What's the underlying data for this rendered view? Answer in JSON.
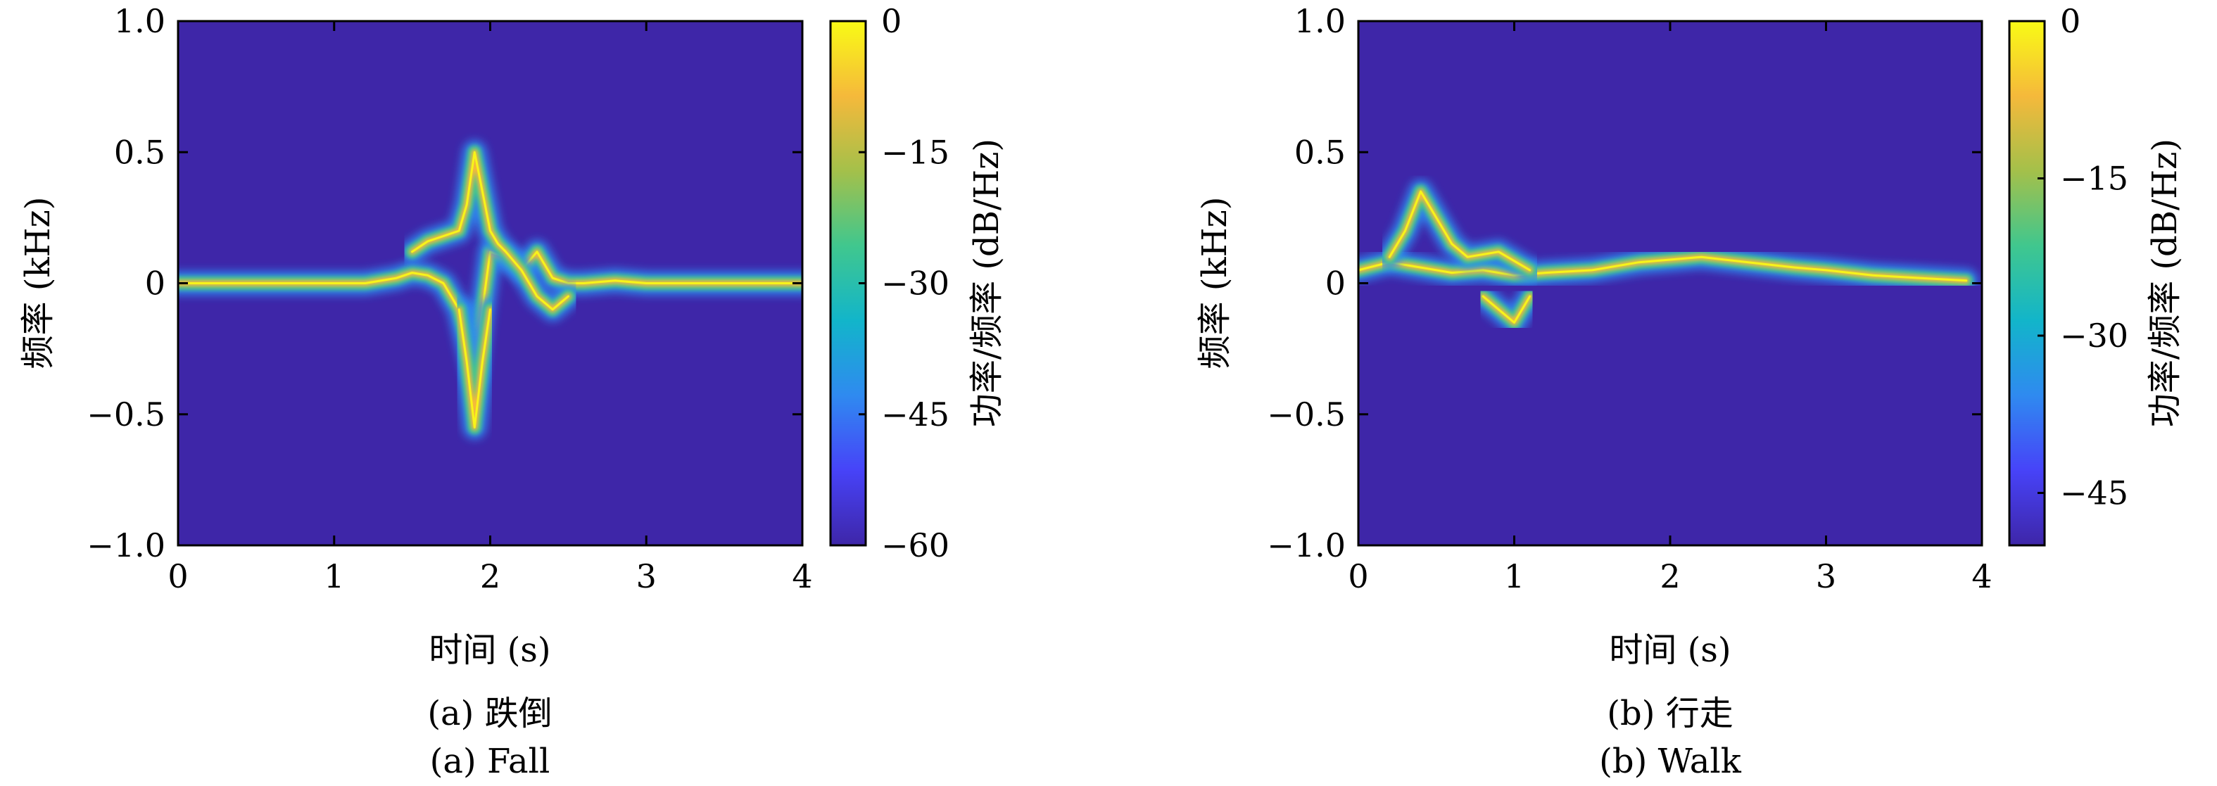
{
  "chart_data": [
    {
      "type": "heatmap",
      "panel_label": "(a) 跌倒",
      "panel_label_en": "(a) Fall",
      "xlabel": "时间 (s)",
      "ylabel": "频率 (kHz)",
      "colorbar_label": "功率/频率 (dB/Hz)",
      "xlim": [
        0,
        4
      ],
      "ylim": [
        -1.0,
        1.0
      ],
      "x_ticks": [
        0,
        1,
        2,
        3,
        4
      ],
      "x_tick_labels": [
        "0",
        "1",
        "2",
        "3",
        "4"
      ],
      "y_ticks": [
        1.0,
        0.5,
        0,
        -0.5,
        -1.0
      ],
      "y_tick_labels": [
        "1.0",
        "0.5",
        "0",
        "−0.5",
        "−1.0"
      ],
      "colorbar_range": [
        -60,
        0
      ],
      "colorbar_ticks": [
        0,
        -15,
        -30,
        -45,
        -60
      ],
      "colorbar_tick_labels": [
        "0",
        "−15",
        "−30",
        "−45",
        "−60"
      ],
      "colormap": [
        "#3e26a8",
        "#4743f8",
        "#2f8af0",
        "#12b5ca",
        "#40c78e",
        "#a4c04a",
        "#f5b93b",
        "#f9fb15"
      ],
      "background_color": "#3e26a8",
      "micro_doppler_traces": [
        {
          "t": [
            0.0,
            1.0,
            1.2,
            1.4,
            1.5,
            1.6,
            1.7,
            1.8,
            1.9,
            1.95,
            2.0,
            2.1,
            2.2,
            2.3,
            2.4,
            2.5,
            2.6,
            2.8,
            3.0,
            3.5,
            4.0
          ],
          "f": [
            0.0,
            0.0,
            0.0,
            0.02,
            0.04,
            0.03,
            0.0,
            -0.1,
            -0.35,
            -0.1,
            0.12,
            0.1,
            0.05,
            0.12,
            0.02,
            0.0,
            0.0,
            0.01,
            0.0,
            0.0,
            0.0
          ]
        },
        {
          "t": [
            1.5,
            1.6,
            1.7,
            1.8,
            1.85,
            1.9,
            1.95,
            2.0,
            2.05,
            2.1,
            2.2,
            2.3,
            2.4,
            2.5
          ],
          "f": [
            0.12,
            0.16,
            0.18,
            0.2,
            0.3,
            0.5,
            0.35,
            0.2,
            0.15,
            0.12,
            0.05,
            -0.05,
            -0.1,
            -0.05
          ]
        },
        {
          "t": [
            1.8,
            1.85,
            1.9,
            1.95,
            2.0
          ],
          "f": [
            -0.1,
            -0.3,
            -0.55,
            -0.3,
            -0.1
          ]
        }
      ]
    },
    {
      "type": "heatmap",
      "panel_label": "(b) 行走",
      "panel_label_en": "(b) Walk",
      "xlabel": "时间 (s)",
      "ylabel": "频率 (kHz)",
      "colorbar_label": "功率/频率 (dB/Hz)",
      "xlim": [
        0,
        4
      ],
      "ylim": [
        -1.0,
        1.0
      ],
      "x_ticks": [
        0,
        1,
        2,
        3,
        4
      ],
      "x_tick_labels": [
        "0",
        "1",
        "2",
        "3",
        "4"
      ],
      "y_ticks": [
        1.0,
        0.5,
        0,
        -0.5,
        -1.0
      ],
      "y_tick_labels": [
        "1.0",
        "0.5",
        "0",
        "−0.5",
        "−1.0"
      ],
      "colorbar_range": [
        -50,
        0
      ],
      "colorbar_ticks": [
        0,
        -15,
        -30,
        -45
      ],
      "colorbar_tick_labels": [
        "0",
        "−15",
        "−30",
        "−45"
      ],
      "colormap": [
        "#3e26a8",
        "#4743f8",
        "#2f8af0",
        "#12b5ca",
        "#40c78e",
        "#a4c04a",
        "#f5b93b",
        "#f9fb15"
      ],
      "background_color": "#3e26a8",
      "micro_doppler_traces": [
        {
          "t": [
            0.0,
            0.2,
            0.4,
            0.6,
            0.8,
            1.0,
            1.2,
            1.5,
            1.8,
            2.0,
            2.2,
            2.5,
            2.8,
            3.0,
            3.3,
            3.6,
            3.9
          ],
          "f": [
            0.05,
            0.08,
            0.06,
            0.04,
            0.05,
            0.03,
            0.04,
            0.05,
            0.08,
            0.09,
            0.1,
            0.08,
            0.06,
            0.05,
            0.03,
            0.02,
            0.01
          ]
        },
        {
          "t": [
            0.2,
            0.3,
            0.4,
            0.5,
            0.6,
            0.7,
            0.9,
            1.1
          ],
          "f": [
            0.1,
            0.2,
            0.35,
            0.25,
            0.15,
            0.1,
            0.12,
            0.05
          ]
        },
        {
          "t": [
            0.8,
            0.9,
            1.0,
            1.1
          ],
          "f": [
            -0.05,
            -0.1,
            -0.15,
            -0.05
          ]
        }
      ]
    }
  ]
}
